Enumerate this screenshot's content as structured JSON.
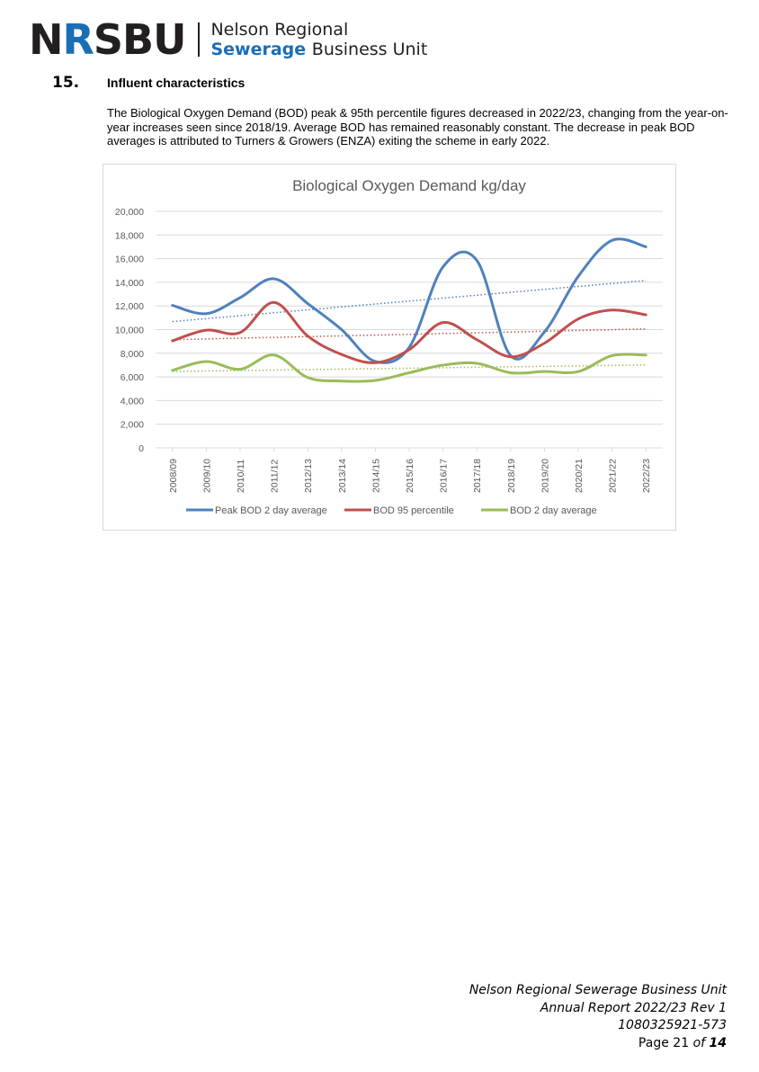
{
  "header": {
    "logo_prefix": "N",
    "logo_highlight": "R",
    "logo_suffix": "SBU",
    "org_line1": "Nelson Regional",
    "org_line2_a": "Sewerage",
    "org_line2_b": "Business Unit"
  },
  "section": {
    "number": "15.",
    "title": "Influent characteristics",
    "paragraph": "The Biological Oxygen Demand (BOD) peak & 95th percentile figures decreased in 2022/23, changing from the year-on-year increases seen since 2018/19. Average BOD has remained reasonably constant. The decrease in peak BOD averages is attributed to Turners & Growers (ENZA) exiting the scheme in early 2022."
  },
  "colors": {
    "peak": "#4f81bd",
    "p95": "#c0504d",
    "avg": "#9bbb59",
    "grid": "#d9d9d9",
    "axis_text": "#595959",
    "title_text": "#595959"
  },
  "chart_data": {
    "type": "line",
    "title": "Biological Oxygen Demand kg/day",
    "xlabel": "",
    "ylabel": "",
    "ylim": [
      0,
      20000
    ],
    "yticks": [
      0,
      2000,
      4000,
      6000,
      8000,
      10000,
      12000,
      14000,
      16000,
      18000,
      20000
    ],
    "ytick_labels": [
      "0",
      "2,000",
      "4,000",
      "6,000",
      "8,000",
      "10,000",
      "12,000",
      "14,000",
      "16,000",
      "18,000",
      "20,000"
    ],
    "grid": "horizontal",
    "legend_position": "bottom",
    "trendlines": "linear, dotted, one per series",
    "categories": [
      "2008/09",
      "2009/10",
      "2010/11",
      "2011/12",
      "2012/13",
      "2013/14",
      "2014/15",
      "2015/16",
      "2016/17",
      "2017/18",
      "2018/19",
      "2019/20",
      "2020/21",
      "2021/22",
      "2022/23"
    ],
    "series": [
      {
        "name": "Peak BOD 2 day average",
        "color_key": "peak",
        "values": [
          12050,
          11350,
          12700,
          14300,
          12200,
          10000,
          7300,
          8500,
          15300,
          15850,
          7800,
          9800,
          14500,
          17550,
          17000
        ]
      },
      {
        "name": "BOD 95 percentile",
        "color_key": "p95",
        "values": [
          9050,
          9950,
          9750,
          12300,
          9450,
          7900,
          7200,
          8300,
          10600,
          9150,
          7700,
          8850,
          10900,
          11650,
          11250
        ]
      },
      {
        "name": "BOD 2 day average",
        "color_key": "avg",
        "values": [
          6550,
          7300,
          6650,
          7850,
          5950,
          5650,
          5700,
          6350,
          7000,
          7150,
          6350,
          6450,
          6450,
          7800,
          7850
        ]
      }
    ]
  },
  "footer": {
    "line1": "Nelson Regional Sewerage Business Unit",
    "line2": "Annual Report 2022/23 Rev 1",
    "line3": "1080325921-573",
    "page_prefix": "Page",
    "page_number": "21",
    "page_of": "of",
    "page_total": "14"
  }
}
